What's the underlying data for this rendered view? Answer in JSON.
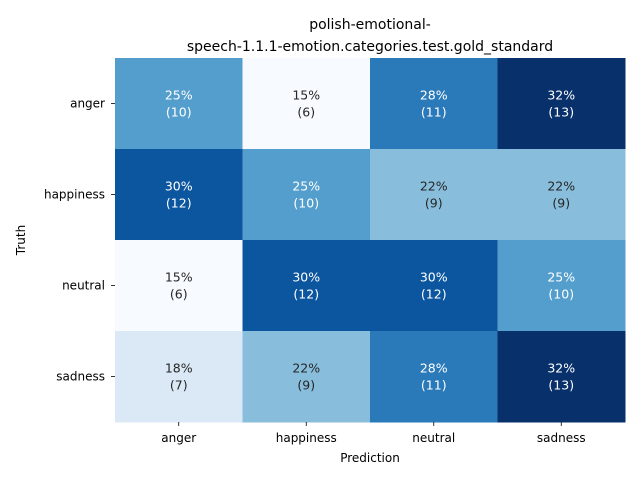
{
  "chart_data": {
    "type": "heatmap",
    "title_lines": [
      "polish-emotional-",
      "speech-1.1.1-emotion.categories.test.gold_standard"
    ],
    "xlabel": "Prediction",
    "ylabel": "Truth",
    "x_categories": [
      "anger",
      "happiness",
      "neutral",
      "sadness"
    ],
    "y_categories": [
      "anger",
      "happiness",
      "neutral",
      "sadness"
    ],
    "percent_labels": [
      [
        "25%",
        "15%",
        "28%",
        "32%"
      ],
      [
        "30%",
        "25%",
        "22%",
        "22%"
      ],
      [
        "15%",
        "30%",
        "30%",
        "25%"
      ],
      [
        "18%",
        "22%",
        "28%",
        "32%"
      ]
    ],
    "counts": [
      [
        10,
        6,
        11,
        13
      ],
      [
        12,
        10,
        9,
        9
      ],
      [
        6,
        12,
        12,
        10
      ],
      [
        7,
        9,
        11,
        13
      ]
    ],
    "colormap": "Blues",
    "grid": false,
    "colorbar": false
  }
}
